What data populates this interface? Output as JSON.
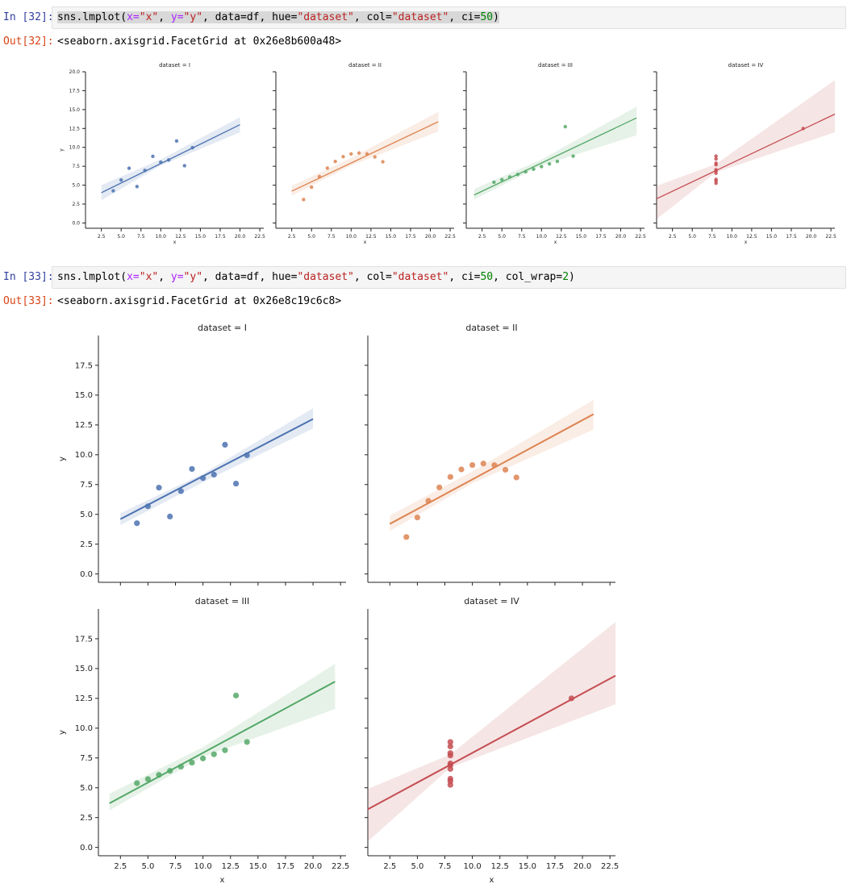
{
  "cells": [
    {
      "in_prompt": "In [32]:",
      "code_parts": [
        "sns.lmplot(",
        "x=",
        "\"x\"",
        ", ",
        "y=",
        "\"y\"",
        ", data=df, hue=",
        "\"dataset\"",
        ", col=",
        "\"dataset\"",
        ", ci=",
        "50",
        ")"
      ],
      "out_prompt": "Out[32]:",
      "output_text": "<seaborn.axisgrid.FacetGrid at 0x26e8b600a48>"
    },
    {
      "in_prompt": "In [33]:",
      "code_parts": [
        "sns.lmplot(",
        "x=",
        "\"x\"",
        ", ",
        "y=",
        "\"y\"",
        ", data=df, hue=",
        "\"dataset\"",
        ", col=",
        "\"dataset\"",
        ", ci=",
        "50",
        ", col_wrap=",
        "2",
        ")"
      ],
      "out_prompt": "Out[33]:",
      "output_text": "<seaborn.axisgrid.FacetGrid at 0x26e8c19c6c8>"
    }
  ],
  "colors": {
    "I": "#4c72b0",
    "II": "#dd8452",
    "III": "#55a868",
    "IV": "#c44e52"
  },
  "chart_data": [
    {
      "type": "scatter",
      "figure": "col",
      "xlabel": "x",
      "ylabel": "y",
      "xlim": [
        0.5,
        23
      ],
      "ylim": [
        -0.7,
        20
      ],
      "xticks": [
        "2.5",
        "5.0",
        "7.5",
        "10.0",
        "12.5",
        "15.0",
        "17.5",
        "20.0",
        "22.5"
      ],
      "yticks": [
        "0.0",
        "2.5",
        "5.0",
        "7.5",
        "10.0",
        "12.5",
        "15.0",
        "17.5",
        "20.0"
      ],
      "panels": [
        {
          "title": "dataset = I",
          "key": "I",
          "x": [
            10,
            8,
            13,
            9,
            11,
            14,
            6,
            4,
            12,
            7,
            5
          ],
          "y": [
            8.04,
            6.95,
            7.58,
            8.81,
            8.33,
            9.96,
            7.24,
            4.26,
            10.84,
            4.82,
            5.68
          ],
          "line": [
            [
              2.5,
              4.0
            ],
            [
              20,
              13.0
            ]
          ],
          "band": [
            [
              2.5,
              3.0,
              5.0
            ],
            [
              10,
              7.6,
              8.4
            ],
            [
              20,
              12.0,
              14.0
            ]
          ]
        },
        {
          "title": "dataset = II",
          "key": "II",
          "x": [
            10,
            8,
            13,
            9,
            11,
            14,
            6,
            4,
            12,
            7,
            5
          ],
          "y": [
            9.14,
            8.14,
            8.74,
            8.77,
            9.26,
            8.1,
            6.13,
            3.1,
            9.13,
            7.26,
            4.74
          ],
          "line": [
            [
              2.5,
              4.2
            ],
            [
              21,
              13.4
            ]
          ],
          "band": [
            [
              2.5,
              3.6,
              4.9
            ],
            [
              10,
              7.6,
              8.6
            ],
            [
              21,
              12.1,
              14.7
            ]
          ]
        },
        {
          "title": "dataset = III",
          "key": "III",
          "x": [
            10,
            8,
            13,
            9,
            11,
            14,
            6,
            4,
            12,
            7,
            5
          ],
          "y": [
            7.46,
            6.77,
            12.74,
            7.11,
            7.81,
            8.84,
            6.08,
            5.39,
            8.15,
            6.42,
            5.73
          ],
          "line": [
            [
              1.5,
              3.7
            ],
            [
              22,
              13.9
            ]
          ],
          "band": [
            [
              1.5,
              3.1,
              4.5
            ],
            [
              10,
              7.6,
              8.4
            ],
            [
              22,
              11.6,
              15.4
            ]
          ]
        },
        {
          "title": "dataset = IV",
          "key": "IV",
          "x": [
            8,
            8,
            8,
            8,
            8,
            8,
            8,
            19,
            8,
            8,
            8
          ],
          "y": [
            6.58,
            5.76,
            7.71,
            8.84,
            8.47,
            7.04,
            5.25,
            12.5,
            5.56,
            7.91,
            6.89
          ],
          "line": [
            [
              0.5,
              3.2
            ],
            [
              23,
              14.4
            ]
          ],
          "band": [
            [
              0.5,
              0.5,
              4.9
            ],
            [
              8,
              6.7,
              7.8
            ],
            [
              23,
              12.0,
              18.9
            ]
          ]
        }
      ]
    },
    {
      "type": "scatter",
      "figure": "col_wrap",
      "xlabel": "x",
      "ylabel": "y",
      "xlim": [
        0.5,
        23
      ],
      "ylim": [
        -0.7,
        20
      ],
      "xticks": [
        "2.5",
        "5.0",
        "7.5",
        "10.0",
        "12.5",
        "15.0",
        "17.5",
        "20.0",
        "22.5"
      ],
      "yticks": [
        "0.0",
        "2.5",
        "5.0",
        "7.5",
        "10.0",
        "12.5",
        "15.0",
        "17.5"
      ],
      "panels": [
        {
          "title": "dataset = I",
          "key": "I",
          "x": [
            10,
            8,
            13,
            9,
            11,
            14,
            6,
            4,
            12,
            7,
            5
          ],
          "y": [
            8.04,
            6.95,
            7.58,
            8.81,
            8.33,
            9.96,
            7.24,
            4.26,
            10.84,
            4.82,
            5.68
          ],
          "line": [
            [
              2.5,
              4.6
            ],
            [
              20,
              13.0
            ]
          ],
          "band": [
            [
              2.5,
              4.1,
              5.1
            ],
            [
              10,
              7.7,
              8.4
            ],
            [
              20,
              12.2,
              13.9
            ]
          ]
        },
        {
          "title": "dataset = II",
          "key": "II",
          "x": [
            10,
            8,
            13,
            9,
            11,
            14,
            6,
            4,
            12,
            7,
            5
          ],
          "y": [
            9.14,
            8.14,
            8.74,
            8.77,
            9.26,
            8.1,
            6.13,
            3.1,
            9.13,
            7.26,
            4.74
          ],
          "line": [
            [
              2.5,
              4.2
            ],
            [
              21,
              13.4
            ]
          ],
          "band": [
            [
              2.5,
              3.6,
              4.9
            ],
            [
              10,
              7.6,
              8.6
            ],
            [
              21,
              12.1,
              14.6
            ]
          ]
        },
        {
          "title": "dataset = III",
          "key": "III",
          "x": [
            10,
            8,
            13,
            9,
            11,
            14,
            6,
            4,
            12,
            7,
            5
          ],
          "y": [
            7.46,
            6.77,
            12.74,
            7.11,
            7.81,
            8.84,
            6.08,
            5.39,
            8.15,
            6.42,
            5.73
          ],
          "line": [
            [
              1.5,
              3.7
            ],
            [
              22,
              13.9
            ]
          ],
          "band": [
            [
              1.5,
              3.1,
              4.5
            ],
            [
              10,
              7.6,
              8.4
            ],
            [
              22,
              11.6,
              15.4
            ]
          ]
        },
        {
          "title": "dataset = IV",
          "key": "IV",
          "x": [
            8,
            8,
            8,
            8,
            8,
            8,
            8,
            19,
            8,
            8,
            8
          ],
          "y": [
            6.58,
            5.76,
            7.71,
            8.84,
            8.47,
            7.04,
            5.25,
            12.5,
            5.56,
            7.91,
            6.89
          ],
          "line": [
            [
              0.5,
              3.2
            ],
            [
              23,
              14.4
            ]
          ],
          "band": [
            [
              0.5,
              0.5,
              4.9
            ],
            [
              8,
              6.7,
              7.8
            ],
            [
              23,
              12.0,
              18.9
            ]
          ]
        }
      ]
    }
  ]
}
